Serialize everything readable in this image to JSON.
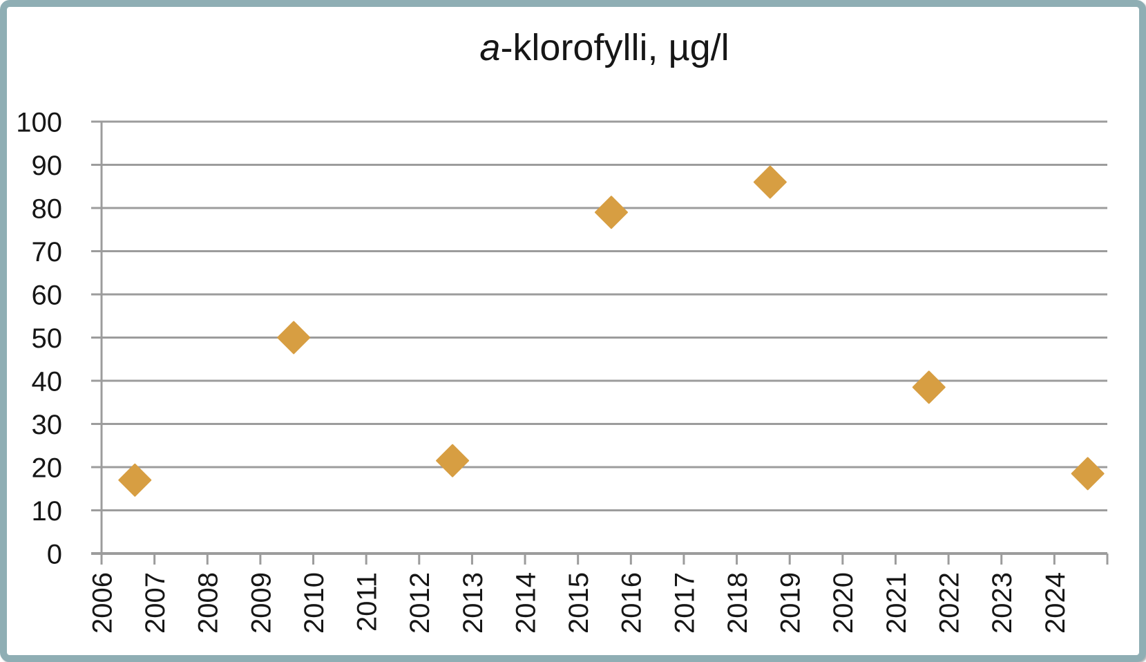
{
  "window": {
    "frame_border_color": "#8FAEB4",
    "background_color": "#FFFFFF"
  },
  "chart_data": {
    "type": "scatter",
    "title": "a-klorofylli, µg/l",
    "title_italic_prefix": "a",
    "title_rest": "-klorofylli, µg/l",
    "xlabel": "",
    "ylabel": "",
    "legend": "none",
    "grid": "horizontal-major",
    "x_axis": {
      "min": 2006,
      "max": 2025,
      "tick_interval": 1,
      "tick_labels": [
        "2006",
        "2007",
        "2008",
        "2009",
        "2010",
        "2011",
        "2012",
        "2013",
        "2014",
        "2015",
        "2016",
        "2017",
        "2018",
        "2019",
        "2020",
        "2021",
        "2022",
        "2023",
        "2024"
      ],
      "end_tick_unlabeled": 2025,
      "label_rotation_deg": -90
    },
    "y_axis": {
      "min": 0,
      "max": 100,
      "tick_interval": 10,
      "tick_labels": [
        "0",
        "10",
        "20",
        "30",
        "40",
        "50",
        "60",
        "70",
        "80",
        "90",
        "100"
      ]
    },
    "series": [
      {
        "name": "a-klorofylli",
        "marker": "diamond",
        "marker_color": "#D79E42",
        "points": [
          {
            "x": 2006.63,
            "y": 17
          },
          {
            "x": 2009.63,
            "y": 50
          },
          {
            "x": 2012.63,
            "y": 21.5
          },
          {
            "x": 2015.63,
            "y": 79
          },
          {
            "x": 2018.63,
            "y": 86
          },
          {
            "x": 2021.63,
            "y": 38.5
          },
          {
            "x": 2024.63,
            "y": 18.5
          }
        ]
      }
    ],
    "colors": {
      "marker": "#D79E42",
      "gridline": "#9C9C9C",
      "axis_line": "#9C9C9C",
      "tick_text": "#161616"
    }
  }
}
